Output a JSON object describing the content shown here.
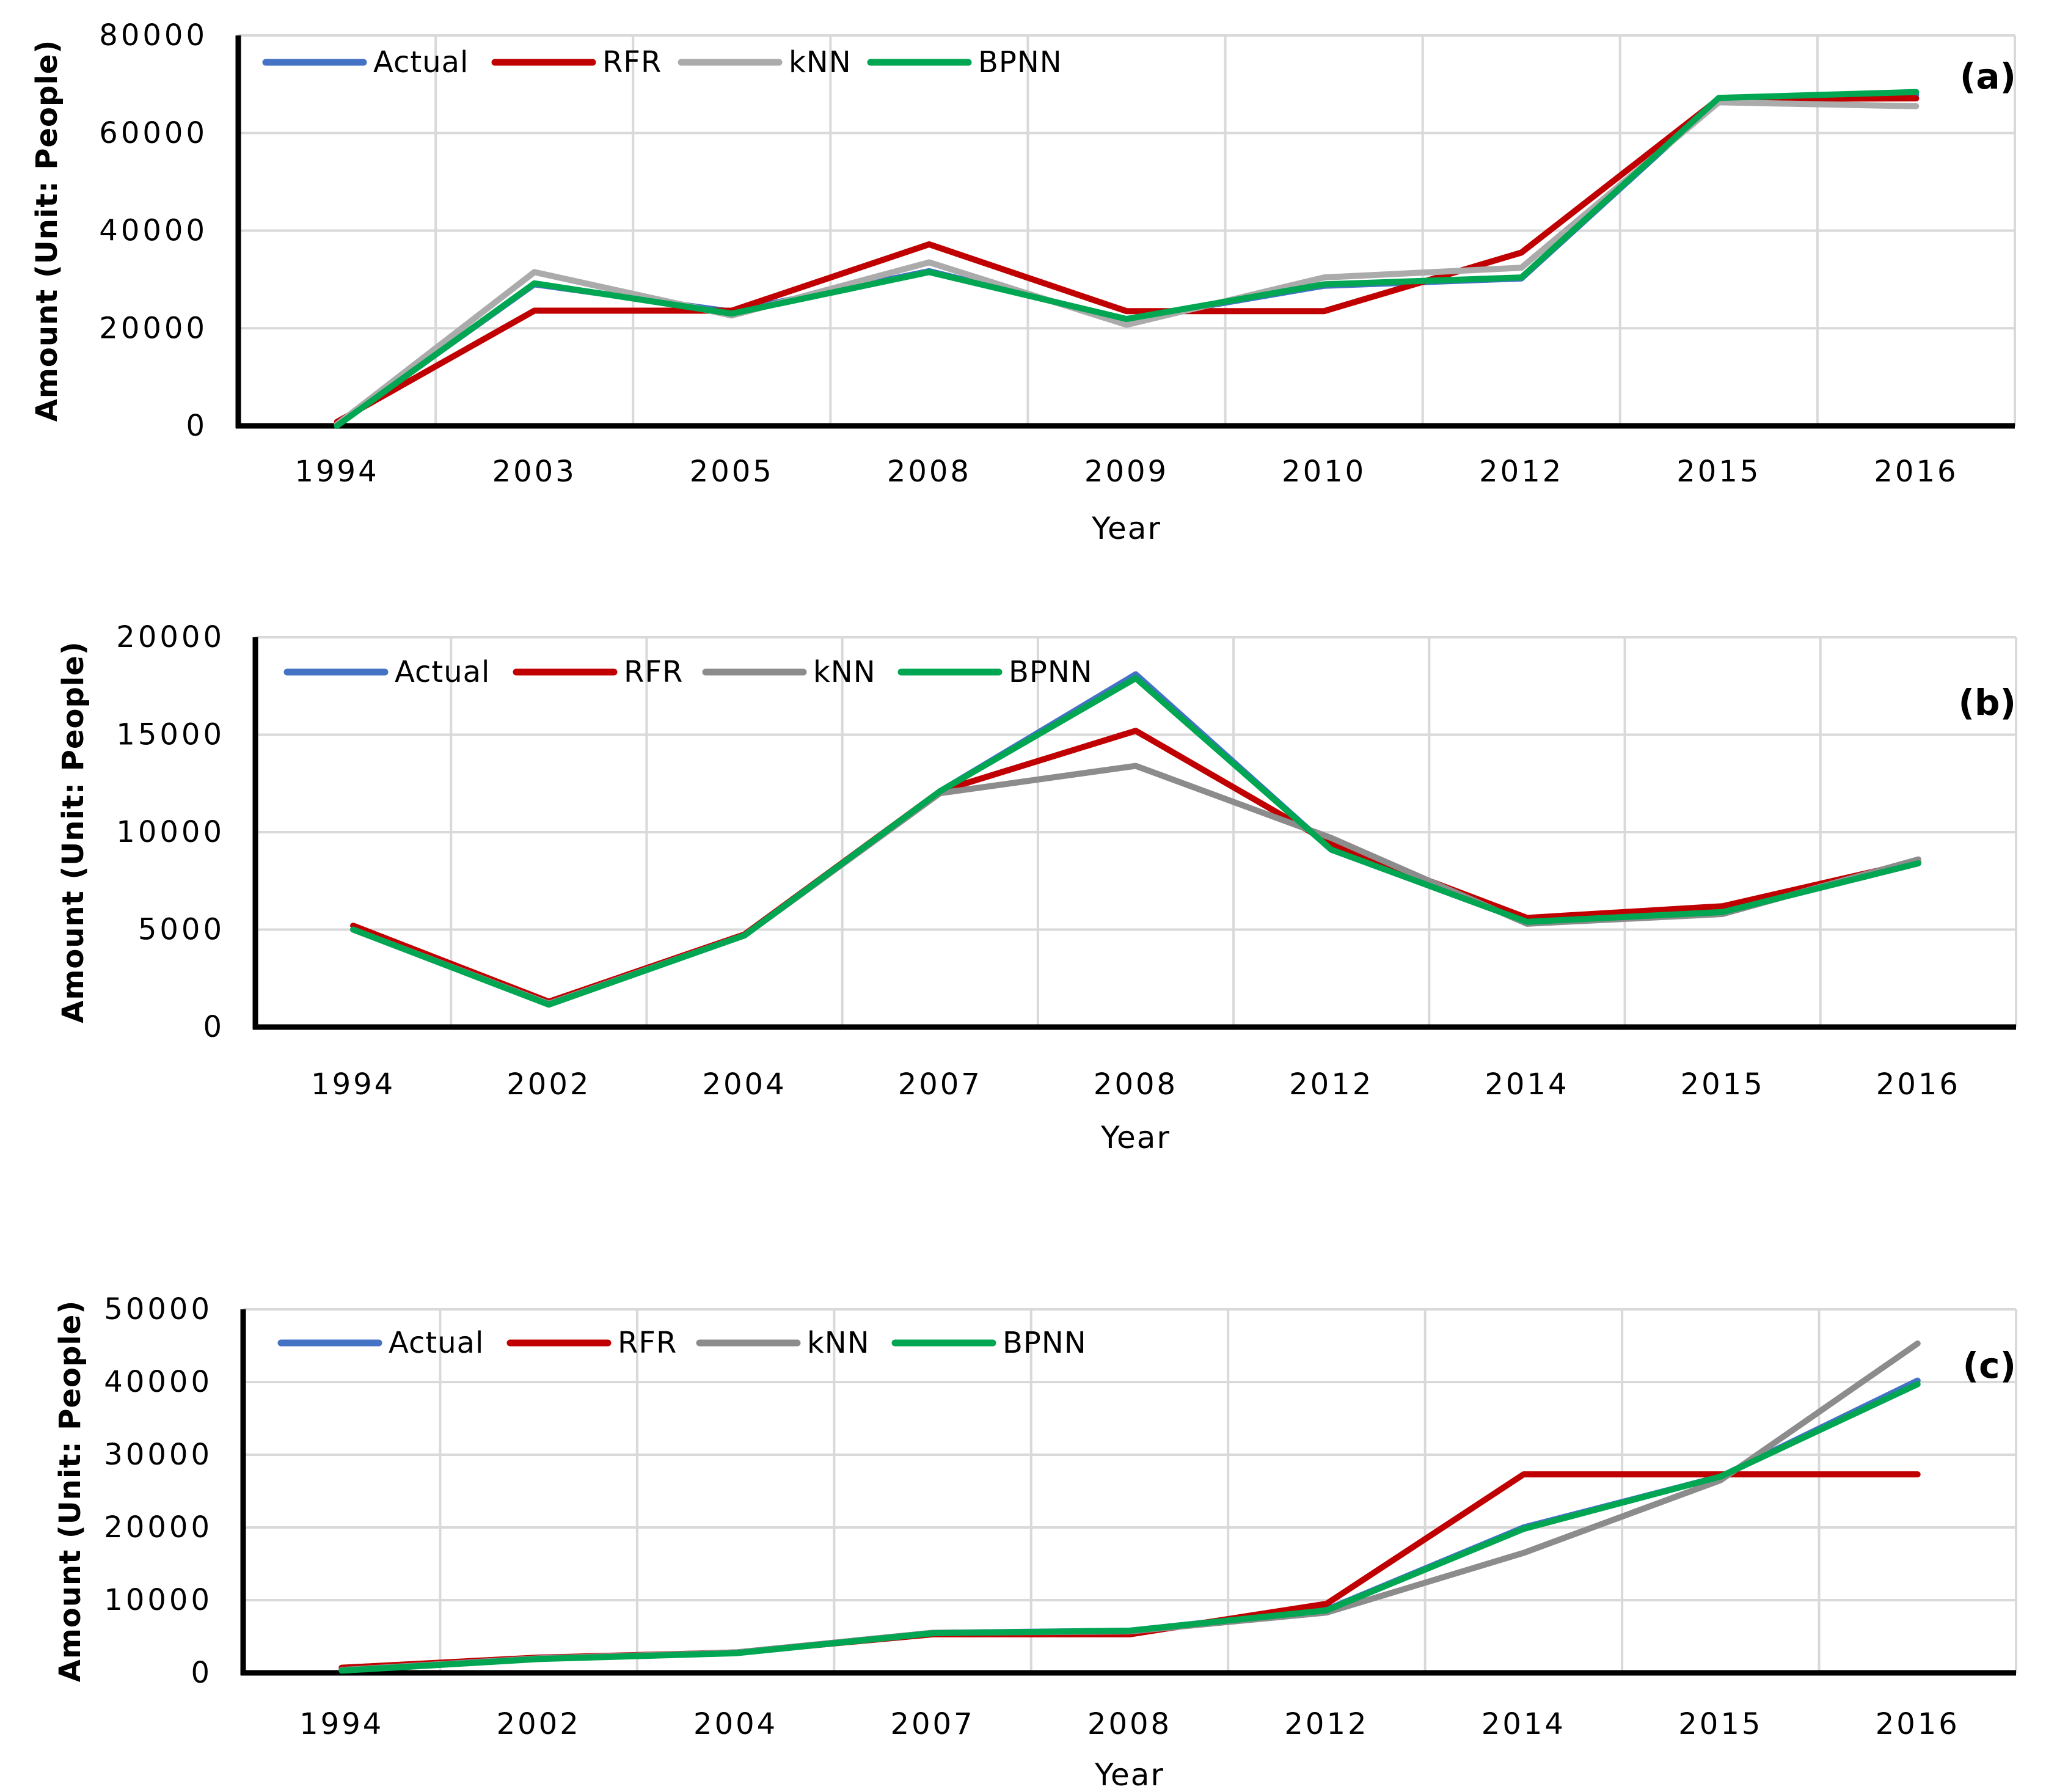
{
  "figure": {
    "description": "Three stacked line charts comparing Actual values with RFR, kNN and BPNN model predictions over years",
    "background_color": "#ffffff",
    "gridline_color": "#D9D9D9",
    "axis_color": "#000000"
  },
  "chart_data": [
    {
      "type": "line",
      "panel_label": "(a)",
      "title": "",
      "xlabel": "Year",
      "ylabel": "Amount (Unit: People)",
      "ylim": [
        0,
        80000
      ],
      "ytick_step": 20000,
      "ytick_labels": [
        "0",
        "20000",
        "40000",
        "60000",
        "80000"
      ],
      "grid": true,
      "legend_position": "top-left-inside",
      "categories": [
        "1994",
        "2003",
        "2005",
        "2008",
        "2009",
        "2010",
        "2012",
        "2015",
        "2016"
      ],
      "series": [
        {
          "name": "Actual",
          "color": "#4472C4",
          "values": [
            200,
            29000,
            23400,
            31700,
            21800,
            28700,
            30200,
            67000,
            67800
          ]
        },
        {
          "name": "RFR",
          "color": "#C00000",
          "values": [
            800,
            23600,
            23600,
            37200,
            23500,
            23500,
            35500,
            67000,
            67100
          ]
        },
        {
          "name": "kNN",
          "color": "#ABABAB",
          "values": [
            300,
            31500,
            22600,
            33500,
            20700,
            30400,
            32400,
            66300,
            65500
          ]
        },
        {
          "name": "BPNN",
          "color": "#00A651",
          "values": [
            0,
            29200,
            23000,
            31500,
            21900,
            29000,
            30400,
            67200,
            68400
          ]
        }
      ]
    },
    {
      "type": "line",
      "panel_label": "(b)",
      "title": "",
      "xlabel": "Year",
      "ylabel": "Amount (Unit: People)",
      "ylim": [
        0,
        20000
      ],
      "ytick_step": 5000,
      "ytick_labels": [
        "0",
        "5000",
        "10000",
        "15000",
        "20000"
      ],
      "grid": true,
      "legend_position": "top-left-inside",
      "categories": [
        "1994",
        "2002",
        "2004",
        "2007",
        "2008",
        "2012",
        "2014",
        "2015",
        "2016"
      ],
      "series": [
        {
          "name": "Actual",
          "color": "#4472C4",
          "values": [
            5000,
            1200,
            4700,
            12100,
            18100,
            9100,
            5400,
            5900,
            8400
          ]
        },
        {
          "name": "RFR",
          "color": "#C00000",
          "values": [
            5200,
            1300,
            4750,
            12100,
            15200,
            9400,
            5600,
            6200,
            8500
          ]
        },
        {
          "name": "kNN",
          "color": "#8C8C8C",
          "values": [
            5000,
            1200,
            4700,
            12000,
            13400,
            9700,
            5300,
            5800,
            8600
          ]
        },
        {
          "name": "BPNN",
          "color": "#00A651",
          "values": [
            5000,
            1150,
            4700,
            12100,
            17900,
            9100,
            5400,
            5900,
            8400
          ]
        }
      ]
    },
    {
      "type": "line",
      "panel_label": "(c)",
      "title": "",
      "xlabel": "Year",
      "ylabel": "Amount (Unit: People)",
      "ylim": [
        0,
        50000
      ],
      "ytick_step": 10000,
      "ytick_labels": [
        "0",
        "10000",
        "20000",
        "30000",
        "40000",
        "50000"
      ],
      "grid": true,
      "legend_position": "top-left-inside",
      "categories": [
        "1994",
        "2002",
        "2004",
        "2007",
        "2008",
        "2012",
        "2014",
        "2015",
        "2016"
      ],
      "series": [
        {
          "name": "Actual",
          "color": "#4472C4",
          "values": [
            400,
            2000,
            2800,
            5500,
            5800,
            8700,
            20000,
            27000,
            40200
          ]
        },
        {
          "name": "RFR",
          "color": "#C00000",
          "values": [
            700,
            2100,
            2800,
            5300,
            5300,
            9500,
            27300,
            27300,
            27300
          ]
        },
        {
          "name": "kNN",
          "color": "#8C8C8C",
          "values": [
            400,
            2000,
            2800,
            5500,
            5700,
            8300,
            16500,
            26500,
            45300
          ]
        },
        {
          "name": "BPNN",
          "color": "#00A651",
          "values": [
            300,
            1900,
            2700,
            5450,
            5800,
            8600,
            19800,
            27000,
            39700
          ]
        }
      ]
    }
  ]
}
